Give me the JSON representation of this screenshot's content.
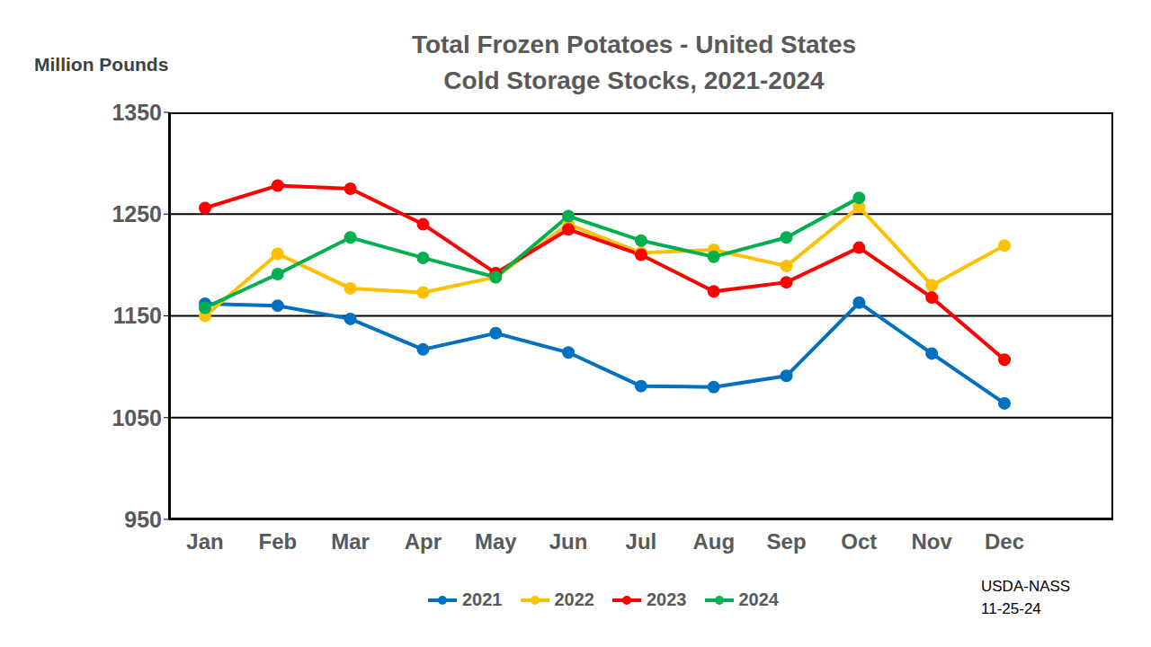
{
  "chart_data": {
    "type": "line",
    "title": "Total Frozen Potatoes - United States",
    "subtitle": "Cold Storage Stocks, 2021-2024",
    "y_label": "Million Pounds",
    "annotations": [
      "USDA-NASS",
      "11-25-24"
    ],
    "categories": [
      "Jan",
      "Feb",
      "Mar",
      "Apr",
      "May",
      "Jun",
      "Jul",
      "Aug",
      "Sep",
      "Oct",
      "Nov",
      "Dec"
    ],
    "series": [
      {
        "name": "2021",
        "color": "#0070c0",
        "values": [
          1162,
          1160,
          1147,
          1117,
          1133,
          1114,
          1081,
          1080,
          1091,
          1163,
          1113,
          1064
        ]
      },
      {
        "name": "2022",
        "color": "#ffc000",
        "values": [
          1150,
          1211,
          1177,
          1173,
          1188,
          1240,
          1212,
          1215,
          1199,
          1257,
          1180,
          1219
        ]
      },
      {
        "name": "2023",
        "color": "#ff0000",
        "values": [
          1256,
          1278,
          1275,
          1240,
          1192,
          1235,
          1210,
          1174,
          1183,
          1217,
          1168,
          1107
        ]
      },
      {
        "name": "2024",
        "color": "#00b050",
        "values": [
          1158,
          1191,
          1227,
          1207,
          1188,
          1248,
          1224,
          1208,
          1227,
          1266,
          null,
          null
        ]
      }
    ],
    "ylim": [
      950,
      1350
    ],
    "yticks": [
      950,
      1050,
      1150,
      1250,
      1350
    ],
    "grid": true,
    "legend": "bottom",
    "marker": "circle"
  }
}
